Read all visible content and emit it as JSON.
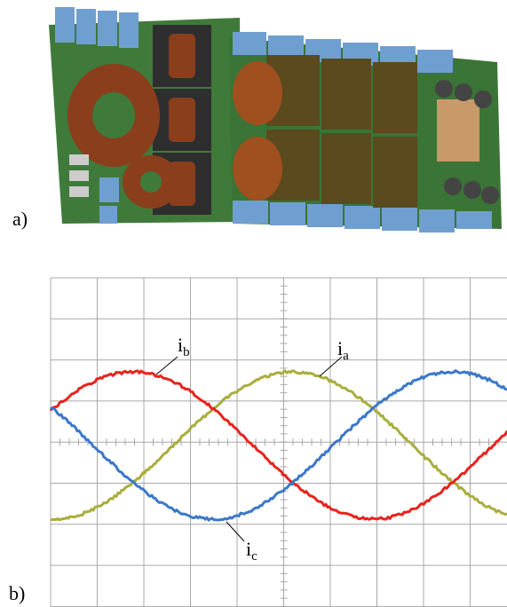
{
  "panel_a": {
    "label": "a)"
  },
  "panel_b": {
    "label": "b)",
    "traces": [
      {
        "symbol": "i",
        "subscript": "a"
      },
      {
        "symbol": "i",
        "subscript": "b"
      },
      {
        "symbol": "i",
        "subscript": "c"
      }
    ]
  }
}
